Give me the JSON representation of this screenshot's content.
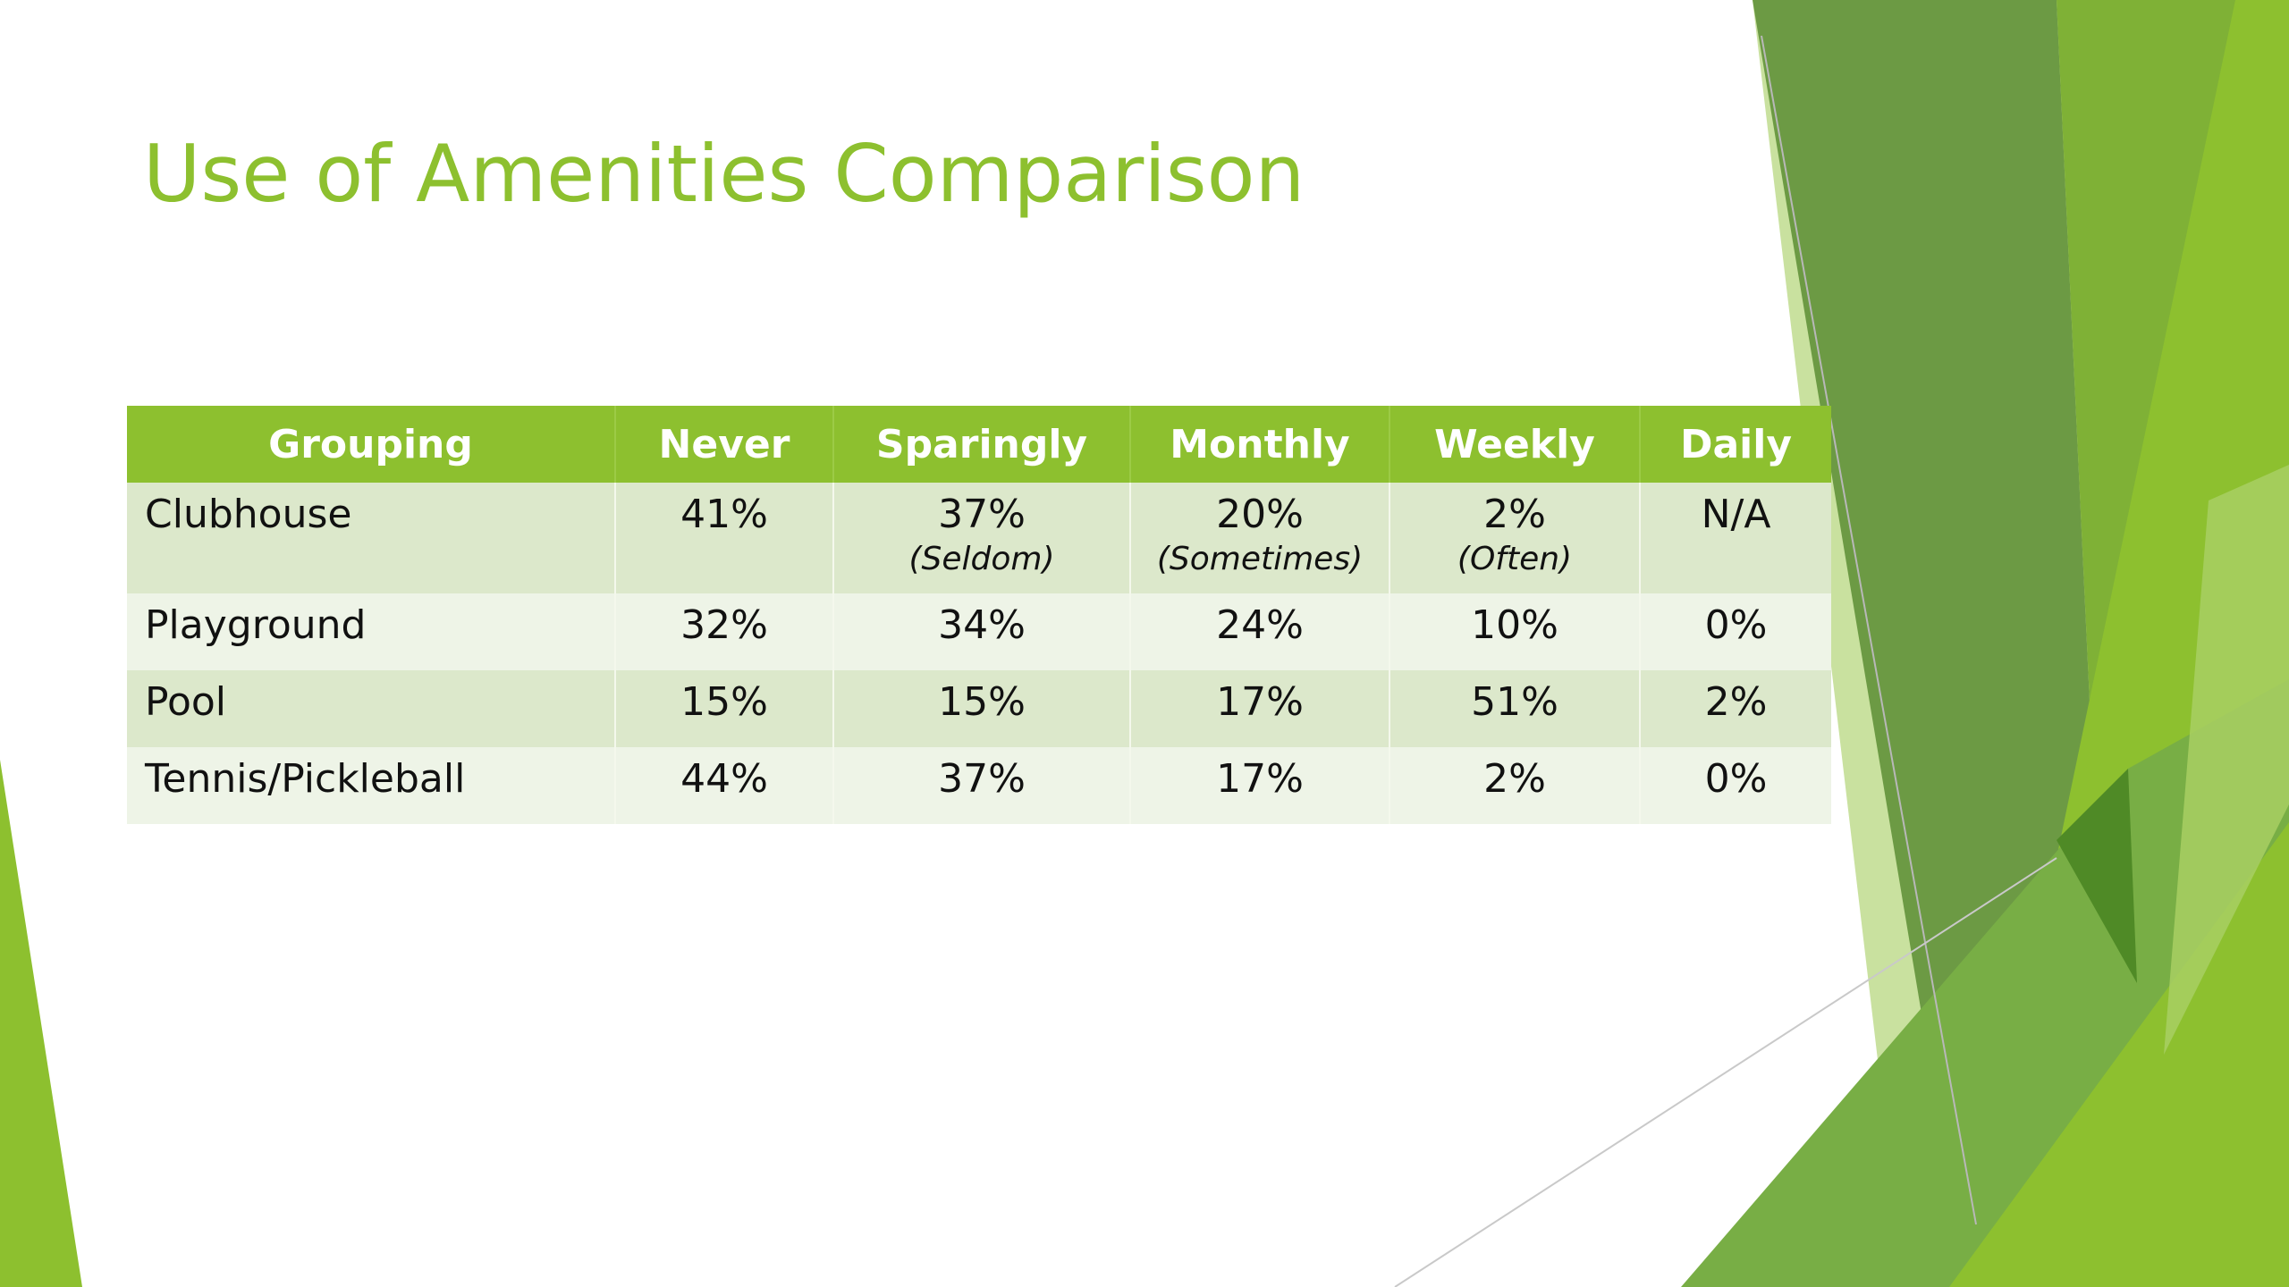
{
  "slide": {
    "title": "Use of Amenities Comparison"
  },
  "table": {
    "headers": [
      "Grouping",
      "Never",
      "Sparingly",
      "Monthly",
      "Weekly",
      "Daily"
    ],
    "rows": [
      {
        "name": "Clubhouse",
        "cells": [
          {
            "value": "41%",
            "note": ""
          },
          {
            "value": "37%",
            "note": "(Seldom)"
          },
          {
            "value": "20%",
            "note": "(Sometimes)"
          },
          {
            "value": "2%",
            "note": "(Often)"
          },
          {
            "value": "N/A",
            "note": ""
          }
        ]
      },
      {
        "name": "Playground",
        "cells": [
          {
            "value": "32%"
          },
          {
            "value": "34%"
          },
          {
            "value": "24%"
          },
          {
            "value": "10%"
          },
          {
            "value": "0%"
          }
        ]
      },
      {
        "name": "Pool",
        "cells": [
          {
            "value": "15%"
          },
          {
            "value": "15%"
          },
          {
            "value": "17%"
          },
          {
            "value": "51%"
          },
          {
            "value": "2%"
          }
        ]
      },
      {
        "name": "Tennis/Pickleball",
        "cells": [
          {
            "value": "44%"
          },
          {
            "value": "37%"
          },
          {
            "value": "17%"
          },
          {
            "value": "2%"
          },
          {
            "value": "0%"
          }
        ]
      }
    ]
  },
  "theme": {
    "accent": "#8dc02f",
    "row_odd": "#dce8cb",
    "row_even": "#eef4e7",
    "dark_green": "#5e8f3a",
    "light_green": "#c9e19f"
  }
}
